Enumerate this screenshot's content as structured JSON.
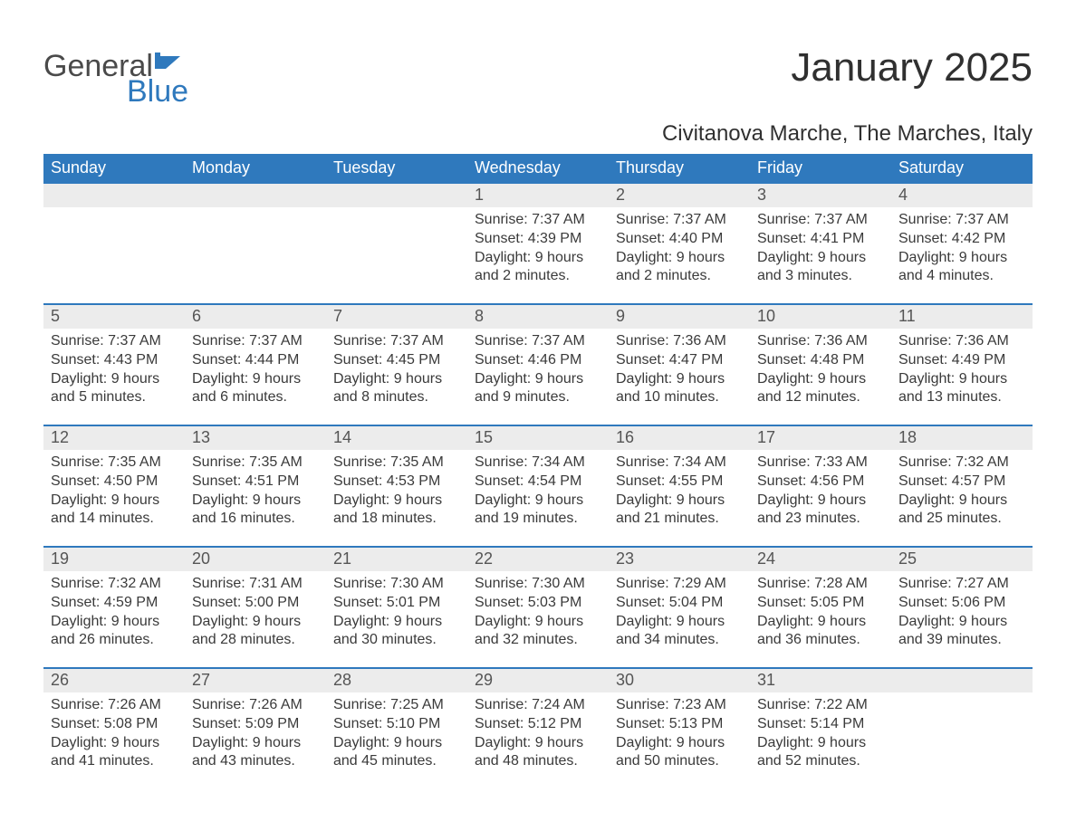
{
  "logo": {
    "word1": "General",
    "word2": "Blue",
    "flag_color": "#2f79bd"
  },
  "title": "January 2025",
  "subtitle": "Civitanova Marche, The Marches, Italy",
  "colors": {
    "header_bg": "#2f79bd",
    "header_text": "#ffffff",
    "daynum_bg": "#ececec",
    "border": "#2f79bd",
    "body_text": "#3a3a3a"
  },
  "weekdays": [
    "Sunday",
    "Monday",
    "Tuesday",
    "Wednesday",
    "Thursday",
    "Friday",
    "Saturday"
  ],
  "labels": {
    "sunrise": "Sunrise",
    "sunset": "Sunset",
    "daylight": "Daylight"
  },
  "weeks": [
    [
      null,
      null,
      null,
      {
        "d": "1",
        "sr": "7:37 AM",
        "ss": "4:39 PM",
        "dl": "9 hours and 2 minutes."
      },
      {
        "d": "2",
        "sr": "7:37 AM",
        "ss": "4:40 PM",
        "dl": "9 hours and 2 minutes."
      },
      {
        "d": "3",
        "sr": "7:37 AM",
        "ss": "4:41 PM",
        "dl": "9 hours and 3 minutes."
      },
      {
        "d": "4",
        "sr": "7:37 AM",
        "ss": "4:42 PM",
        "dl": "9 hours and 4 minutes."
      }
    ],
    [
      {
        "d": "5",
        "sr": "7:37 AM",
        "ss": "4:43 PM",
        "dl": "9 hours and 5 minutes."
      },
      {
        "d": "6",
        "sr": "7:37 AM",
        "ss": "4:44 PM",
        "dl": "9 hours and 6 minutes."
      },
      {
        "d": "7",
        "sr": "7:37 AM",
        "ss": "4:45 PM",
        "dl": "9 hours and 8 minutes."
      },
      {
        "d": "8",
        "sr": "7:37 AM",
        "ss": "4:46 PM",
        "dl": "9 hours and 9 minutes."
      },
      {
        "d": "9",
        "sr": "7:36 AM",
        "ss": "4:47 PM",
        "dl": "9 hours and 10 minutes."
      },
      {
        "d": "10",
        "sr": "7:36 AM",
        "ss": "4:48 PM",
        "dl": "9 hours and 12 minutes."
      },
      {
        "d": "11",
        "sr": "7:36 AM",
        "ss": "4:49 PM",
        "dl": "9 hours and 13 minutes."
      }
    ],
    [
      {
        "d": "12",
        "sr": "7:35 AM",
        "ss": "4:50 PM",
        "dl": "9 hours and 14 minutes."
      },
      {
        "d": "13",
        "sr": "7:35 AM",
        "ss": "4:51 PM",
        "dl": "9 hours and 16 minutes."
      },
      {
        "d": "14",
        "sr": "7:35 AM",
        "ss": "4:53 PM",
        "dl": "9 hours and 18 minutes."
      },
      {
        "d": "15",
        "sr": "7:34 AM",
        "ss": "4:54 PM",
        "dl": "9 hours and 19 minutes."
      },
      {
        "d": "16",
        "sr": "7:34 AM",
        "ss": "4:55 PM",
        "dl": "9 hours and 21 minutes."
      },
      {
        "d": "17",
        "sr": "7:33 AM",
        "ss": "4:56 PM",
        "dl": "9 hours and 23 minutes."
      },
      {
        "d": "18",
        "sr": "7:32 AM",
        "ss": "4:57 PM",
        "dl": "9 hours and 25 minutes."
      }
    ],
    [
      {
        "d": "19",
        "sr": "7:32 AM",
        "ss": "4:59 PM",
        "dl": "9 hours and 26 minutes."
      },
      {
        "d": "20",
        "sr": "7:31 AM",
        "ss": "5:00 PM",
        "dl": "9 hours and 28 minutes."
      },
      {
        "d": "21",
        "sr": "7:30 AM",
        "ss": "5:01 PM",
        "dl": "9 hours and 30 minutes."
      },
      {
        "d": "22",
        "sr": "7:30 AM",
        "ss": "5:03 PM",
        "dl": "9 hours and 32 minutes."
      },
      {
        "d": "23",
        "sr": "7:29 AM",
        "ss": "5:04 PM",
        "dl": "9 hours and 34 minutes."
      },
      {
        "d": "24",
        "sr": "7:28 AM",
        "ss": "5:05 PM",
        "dl": "9 hours and 36 minutes."
      },
      {
        "d": "25",
        "sr": "7:27 AM",
        "ss": "5:06 PM",
        "dl": "9 hours and 39 minutes."
      }
    ],
    [
      {
        "d": "26",
        "sr": "7:26 AM",
        "ss": "5:08 PM",
        "dl": "9 hours and 41 minutes."
      },
      {
        "d": "27",
        "sr": "7:26 AM",
        "ss": "5:09 PM",
        "dl": "9 hours and 43 minutes."
      },
      {
        "d": "28",
        "sr": "7:25 AM",
        "ss": "5:10 PM",
        "dl": "9 hours and 45 minutes."
      },
      {
        "d": "29",
        "sr": "7:24 AM",
        "ss": "5:12 PM",
        "dl": "9 hours and 48 minutes."
      },
      {
        "d": "30",
        "sr": "7:23 AM",
        "ss": "5:13 PM",
        "dl": "9 hours and 50 minutes."
      },
      {
        "d": "31",
        "sr": "7:22 AM",
        "ss": "5:14 PM",
        "dl": "9 hours and 52 minutes."
      },
      null
    ]
  ]
}
